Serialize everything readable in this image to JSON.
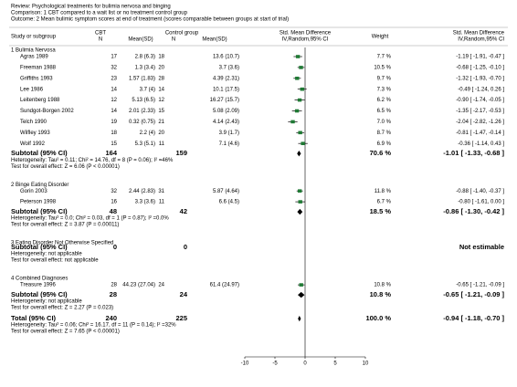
{
  "header": {
    "review": "Review:  Psychological treatments for bulimia nervosa and binging",
    "comparison": "Comparison:  1 CBT compared to a wait list or no treatment control group",
    "outcome": "Outcome:  2 Mean bulimic symptom scores at end of treatment (scores comparable between groups at start of trial)"
  },
  "chart_data": {
    "type": "forest",
    "columns": {
      "study": "Study or subgroup",
      "cbt": "CBT",
      "cbt_n": "N",
      "cbt_mean": "Mean(SD)",
      "ctrl": "Control group",
      "ctrl_n": "N",
      "ctrl_mean": "Mean(SD)",
      "plot_title": "Std. Mean Difference",
      "plot_sub": "IV,Random,95% CI",
      "weight": "Weight",
      "est_title": "Std. Mean Difference",
      "est_sub": "IV,Random,95% CI"
    },
    "xlim": [
      -10,
      10
    ],
    "xticks": [
      -10,
      -5,
      0,
      5,
      10
    ],
    "marker_color": "#1f7a34",
    "diamond_color": "#000000",
    "groups": [
      {
        "title": "1 Bulimia Nervosa",
        "studies": [
          {
            "name": "Agras 1989",
            "cbt_n": 17,
            "cbt_mean_sd": "2.8 (6.3)",
            "ctrl_n": 18,
            "ctrl_mean_sd": "13.6 (10.7)",
            "weight": "7.7 %",
            "effect": -1.19,
            "lower": -1.91,
            "upper": -0.47,
            "ci_label": "-1.19 [ -1.91, -0.47 ]"
          },
          {
            "name": "Freeman 1988",
            "cbt_n": 32,
            "cbt_mean_sd": "1.3 (3.4)",
            "ctrl_n": 20,
            "ctrl_mean_sd": "3.7 (3.6)",
            "weight": "10.5 %",
            "effect": -0.68,
            "lower": -1.25,
            "upper": -0.1,
            "ci_label": "-0.68 [ -1.25, -0.10 ]"
          },
          {
            "name": "Griffiths 1993",
            "cbt_n": 23,
            "cbt_mean_sd": "1.57 (1.83)",
            "ctrl_n": 28,
            "ctrl_mean_sd": "4.39 (2.31)",
            "weight": "9.7 %",
            "effect": -1.32,
            "lower": -1.93,
            "upper": -0.7,
            "ci_label": "-1.32 [ -1.93, -0.70 ]"
          },
          {
            "name": "Lee 1986",
            "cbt_n": 14,
            "cbt_mean_sd": "3.7 (4)",
            "ctrl_n": 14,
            "ctrl_mean_sd": "10.1 (17.5)",
            "weight": "7.3 %",
            "effect": -0.49,
            "lower": -1.24,
            "upper": 0.26,
            "ci_label": "-0.49 [ -1.24, 0.26 ]"
          },
          {
            "name": "Leitenberg 1988",
            "cbt_n": 12,
            "cbt_mean_sd": "5.13 (6.5)",
            "ctrl_n": 12,
            "ctrl_mean_sd": "16.27 (15.7)",
            "weight": "6.2 %",
            "effect": -0.9,
            "lower": -1.74,
            "upper": -0.05,
            "ci_label": "-0.90 [ -1.74, -0.05 ]"
          },
          {
            "name": "Sundgot-Borgen 2002",
            "cbt_n": 14,
            "cbt_mean_sd": "2.01 (2.33)",
            "ctrl_n": 15,
            "ctrl_mean_sd": "5.08 (2.09)",
            "weight": "6.5 %",
            "effect": -1.35,
            "lower": -2.17,
            "upper": -0.53,
            "ci_label": "-1.35 [ -2.17, -0.53 ]"
          },
          {
            "name": "Telch 1990",
            "cbt_n": 19,
            "cbt_mean_sd": "0.32 (0.75)",
            "ctrl_n": 21,
            "ctrl_mean_sd": "4.14 (2.43)",
            "weight": "7.0 %",
            "effect": -2.04,
            "lower": -2.82,
            "upper": -1.26,
            "ci_label": "-2.04 [ -2.82, -1.26 ]"
          },
          {
            "name": "Wilfley 1993",
            "cbt_n": 18,
            "cbt_mean_sd": "2.2 (4)",
            "ctrl_n": 20,
            "ctrl_mean_sd": "3.9 (1.7)",
            "weight": "8.7 %",
            "effect": -0.81,
            "lower": -1.47,
            "upper": -0.14,
            "ci_label": "-0.81 [ -1.47, -0.14 ]"
          },
          {
            "name": "Wolf 1992",
            "cbt_n": 15,
            "cbt_mean_sd": "5.3 (5.1)",
            "ctrl_n": 11,
            "ctrl_mean_sd": "7.1 (4.6)",
            "weight": "6.9 %",
            "effect": -0.36,
            "lower": -1.14,
            "upper": 0.43,
            "ci_label": "-0.36 [ -1.14, 0.43 ]"
          }
        ],
        "subtotal": {
          "label": "Subtotal (95% CI)",
          "cbt_n": 164,
          "ctrl_n": 159,
          "weight": "70.6 %",
          "effect": -1.01,
          "lower": -1.33,
          "upper": -0.68,
          "ci_label": "-1.01 [ -1.33, -0.68 ]"
        },
        "heterogeneity": "Heterogeneity: Tau² = 0.11; Chi² = 14.76, df = 8 (P = 0.06); I² =46%",
        "overall_effect": "Test for overall effect: Z = 6.06 (P < 0.00001)"
      },
      {
        "title": "2 Binge Eating Disorder",
        "studies": [
          {
            "name": "Gorin 2003",
            "cbt_n": 32,
            "cbt_mean_sd": "2.44 (2.83)",
            "ctrl_n": 31,
            "ctrl_mean_sd": "5.87 (4.64)",
            "weight": "11.8 %",
            "effect": -0.88,
            "lower": -1.4,
            "upper": -0.37,
            "ci_label": "-0.88 [ -1.40, -0.37 ]"
          },
          {
            "name": "Peterson 1998",
            "cbt_n": 16,
            "cbt_mean_sd": "3.3 (3.6)",
            "ctrl_n": 11,
            "ctrl_mean_sd": "6.6 (4.5)",
            "weight": "6.7 %",
            "effect": -0.8,
            "lower": -1.61,
            "upper": 0.0,
            "ci_label": "-0.80 [ -1.61, 0.00 ]"
          }
        ],
        "subtotal": {
          "label": "Subtotal (95% CI)",
          "cbt_n": 48,
          "ctrl_n": 42,
          "weight": "18.5 %",
          "effect": -0.86,
          "lower": -1.3,
          "upper": -0.42,
          "ci_label": "-0.86 [ -1.30, -0.42 ]"
        },
        "heterogeneity": "Heterogeneity: Tau² = 0.0; Chi² = 0.03, df = 1 (P = 0.87); I² =0.0%",
        "overall_effect": "Test for overall effect: Z = 3.87 (P = 0.00011)"
      },
      {
        "title": "3 Eating Disorder Not Otherwise Specified",
        "studies": [],
        "subtotal": {
          "label": "Subtotal (95% CI)",
          "cbt_n": 0,
          "ctrl_n": 0,
          "ci_label": "Not estimable"
        },
        "heterogeneity": "Heterogeneity: not applicable",
        "overall_effect": "Test for overall effect: not applicable"
      },
      {
        "title": "4 Combined Diagnoses",
        "studies": [
          {
            "name": "Treasure 1996",
            "cbt_n": 28,
            "cbt_mean_sd": "44.23 (27.04)",
            "ctrl_n": 24,
            "ctrl_mean_sd": "61.4 (24.97)",
            "weight": "10.8 %",
            "effect": -0.65,
            "lower": -1.21,
            "upper": -0.09,
            "ci_label": "-0.65 [ -1.21, -0.09 ]"
          }
        ],
        "subtotal": {
          "label": "Subtotal (95% CI)",
          "cbt_n": 28,
          "ctrl_n": 24,
          "weight": "10.8 %",
          "effect": -0.65,
          "lower": -1.21,
          "upper": -0.09,
          "ci_label": "-0.65 [ -1.21, -0.09 ]"
        },
        "heterogeneity": "Heterogeneity: not applicable",
        "overall_effect": "Test for overall effect: Z = 2.27 (P = 0.023)"
      }
    ],
    "total": {
      "label": "Total (95% CI)",
      "cbt_n": 240,
      "ctrl_n": 225,
      "weight": "100.0 %",
      "effect": -0.94,
      "lower": -1.18,
      "upper": -0.7,
      "ci_label": "-0.94 [ -1.18, -0.70 ]",
      "heterogeneity": "Heterogeneity: Tau² = 0.06; Chi² = 16.17, df = 11 (P = 0.14); I² =32%",
      "overall_effect": "Test for overall effect: Z = 7.65 (P < 0.00001)"
    }
  }
}
